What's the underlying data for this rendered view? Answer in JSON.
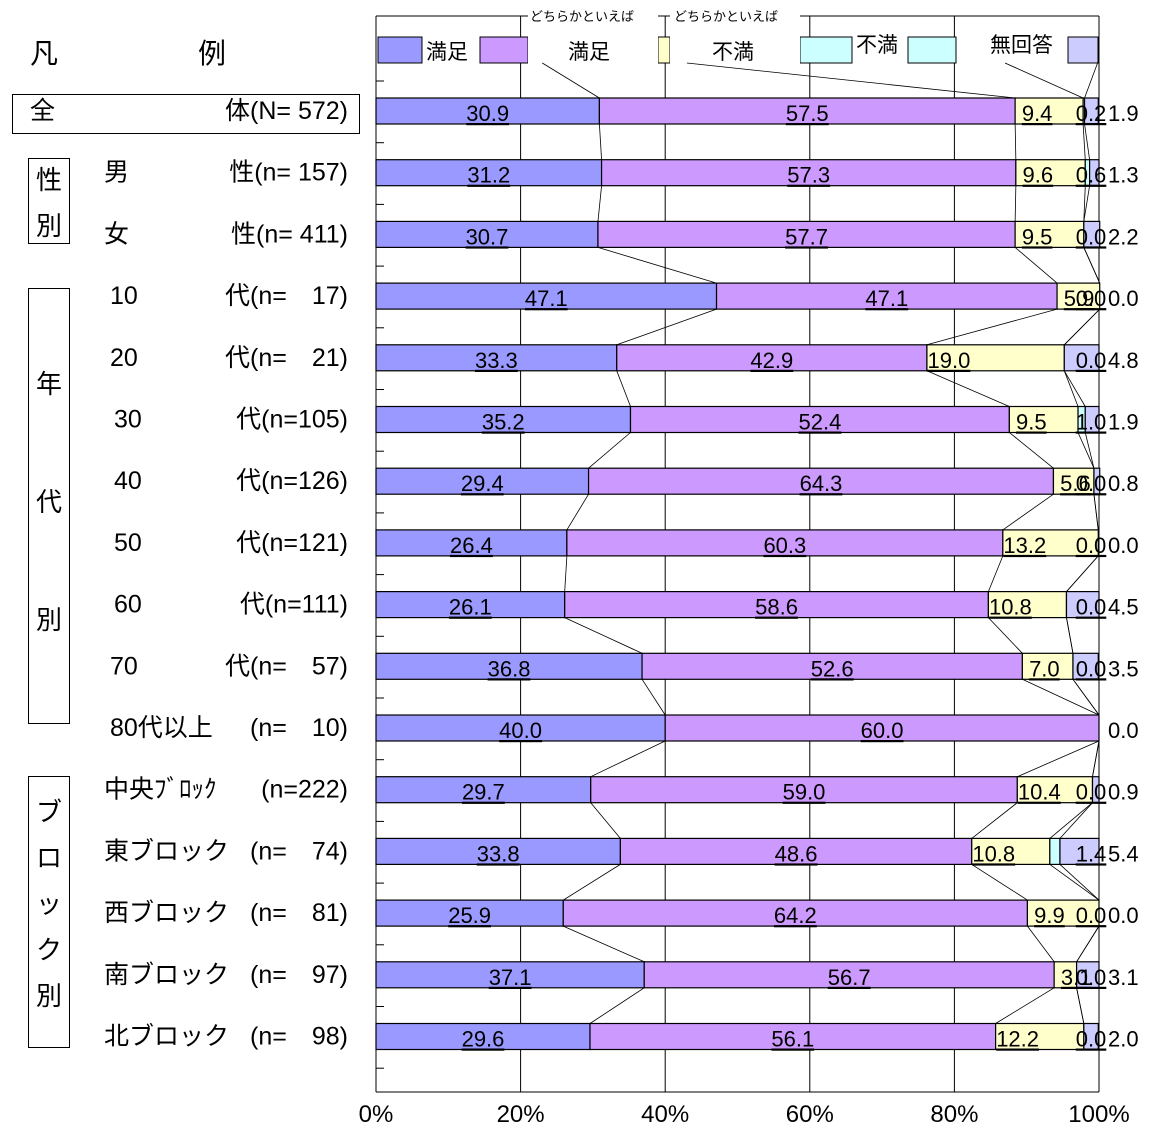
{
  "chart_data": {
    "type": "bar",
    "stacked": true,
    "orientation": "horizontal",
    "xlim": [
      0,
      100
    ],
    "x_ticks": [
      "0%",
      "20%",
      "40%",
      "60%",
      "80%",
      "100%"
    ],
    "legend_heading": "凡　　　　　例",
    "legend_note": "どちらかといえば",
    "series": [
      {
        "name": "満足",
        "color": "#9999ff"
      },
      {
        "name": "満足",
        "note": "どちらかといえば",
        "color": "#cc99ff"
      },
      {
        "name": "不満",
        "note": "どちらかといえば",
        "color": "#ffffcc"
      },
      {
        "name": "不満",
        "color": "#ccffff"
      },
      {
        "name": "無回答",
        "color": "#ccccff"
      }
    ],
    "rows": [
      {
        "name": "全",
        "label": "体(N= 572)",
        "values": [
          30.9,
          57.5,
          9.4,
          0.2,
          1.9
        ]
      },
      {
        "name": "男",
        "label": "性(n= 157)",
        "values": [
          31.2,
          57.3,
          9.6,
          0.6,
          1.3
        ]
      },
      {
        "name": "女",
        "label": "性(n= 411)",
        "values": [
          30.7,
          57.7,
          9.5,
          0.0,
          2.2
        ]
      },
      {
        "name": "10",
        "label": "代(n=　17)",
        "values": [
          47.1,
          47.1,
          5.9,
          0.0,
          0.0
        ]
      },
      {
        "name": "20",
        "label": "代(n=　21)",
        "values": [
          33.3,
          42.9,
          19.0,
          0.0,
          4.8
        ]
      },
      {
        "name": "30",
        "label": "代(n=105)",
        "values": [
          35.2,
          52.4,
          9.5,
          1.0,
          1.9
        ]
      },
      {
        "name": "40",
        "label": "代(n=126)",
        "values": [
          29.4,
          64.3,
          5.6,
          0.0,
          0.8
        ]
      },
      {
        "name": "50",
        "label": "代(n=121)",
        "values": [
          26.4,
          60.3,
          13.2,
          0.0,
          0.0
        ]
      },
      {
        "name": "60",
        "label": "代(n=111)",
        "values": [
          26.1,
          58.6,
          10.8,
          0.0,
          4.5
        ]
      },
      {
        "name": "70",
        "label": "代(n=　57)",
        "values": [
          36.8,
          52.6,
          7.0,
          0.0,
          3.5
        ]
      },
      {
        "name": "80代以上",
        "label": "(n=　10)",
        "values": [
          40.0,
          60.0,
          0.0,
          0.0,
          0.0
        ]
      },
      {
        "name": "中央ﾌﾞﾛｯｸ",
        "label": "(n=222)",
        "values": [
          29.7,
          59.0,
          10.4,
          0.0,
          0.9
        ]
      },
      {
        "name": "東ブロック",
        "label": "(n=　74)",
        "values": [
          33.8,
          48.6,
          10.8,
          1.4,
          5.4
        ]
      },
      {
        "name": "西ブロック",
        "label": "(n=　81)",
        "values": [
          25.9,
          64.2,
          9.9,
          0.0,
          0.0
        ]
      },
      {
        "name": "南ブロック",
        "label": "(n=　97)",
        "values": [
          37.1,
          56.7,
          3.1,
          0.0,
          3.1
        ]
      },
      {
        "name": "北ブロック",
        "label": "(n=　98)",
        "values": [
          29.6,
          56.1,
          12.2,
          0.0,
          2.0
        ]
      }
    ],
    "groups": [
      {
        "name": "性別",
        "chars": [
          "性",
          "別"
        ]
      },
      {
        "name": "年代別",
        "chars": [
          "年",
          "代",
          "別"
        ]
      },
      {
        "name": "ブロック別",
        "chars": [
          "ブ",
          "ロ",
          "ッ",
          "ク",
          "別"
        ]
      }
    ]
  }
}
